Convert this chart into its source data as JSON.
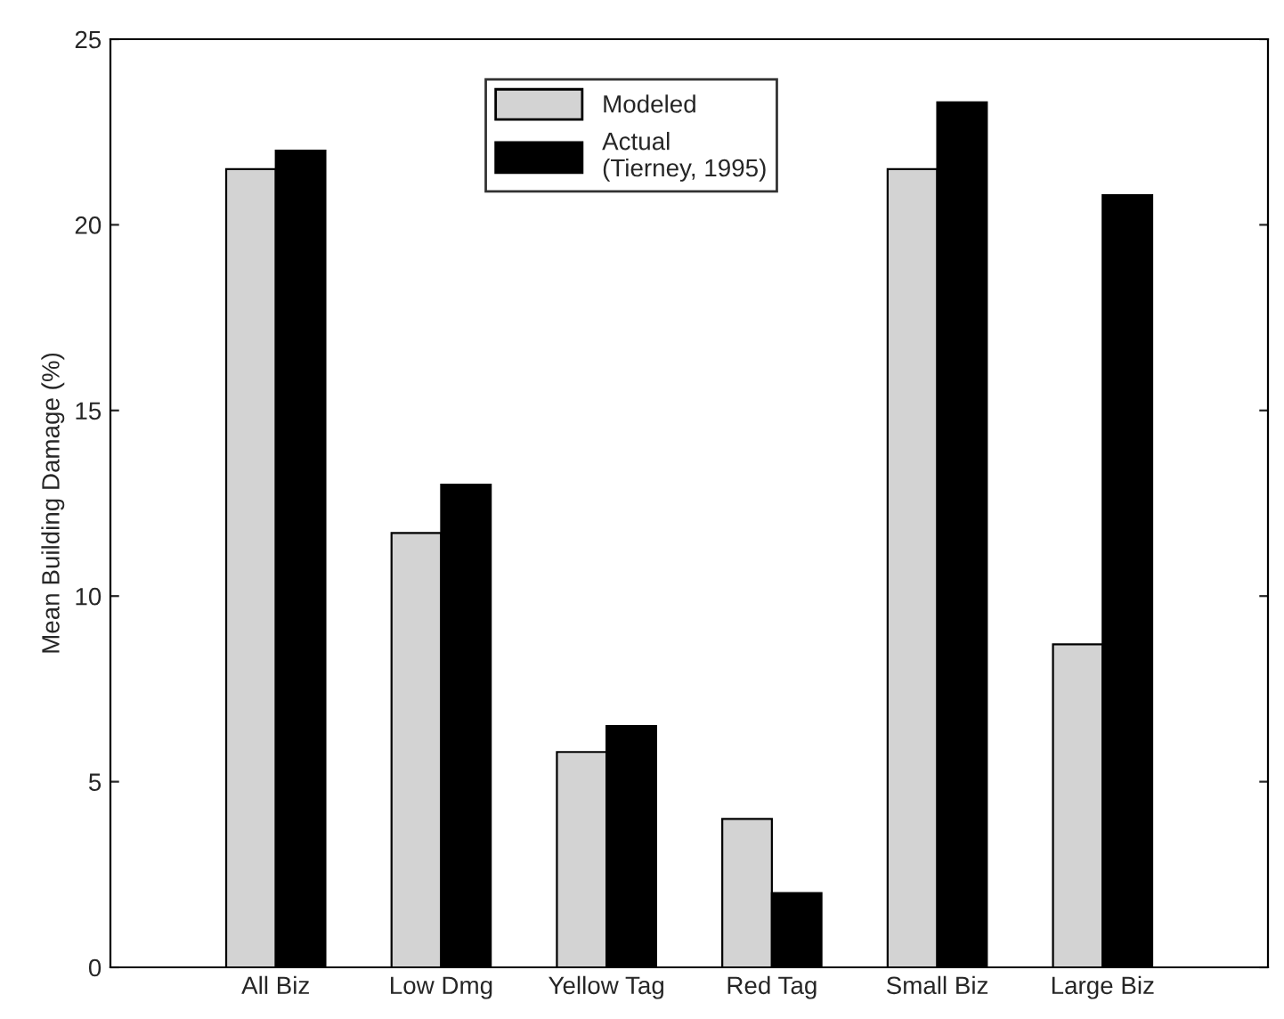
{
  "chart_data": {
    "type": "bar",
    "ylabel": "Mean Building Damage (%)",
    "categories": [
      "All Biz",
      "Low Dmg",
      "Yellow Tag",
      "Red Tag",
      "Small Biz",
      "Large Biz"
    ],
    "series": [
      {
        "name": "Modeled",
        "color": "#d3d3d3",
        "values": [
          21.5,
          11.7,
          5.8,
          4.0,
          21.5,
          8.7
        ]
      },
      {
        "name": "Actual\n(Tierney, 1995)",
        "color": "#000000",
        "values": [
          22.0,
          13.0,
          6.5,
          2.0,
          23.3,
          20.8
        ]
      }
    ],
    "ylim": [
      0,
      25
    ],
    "yticks": [
      0,
      5,
      10,
      15,
      20,
      25
    ],
    "grid": false,
    "legend": "top"
  }
}
